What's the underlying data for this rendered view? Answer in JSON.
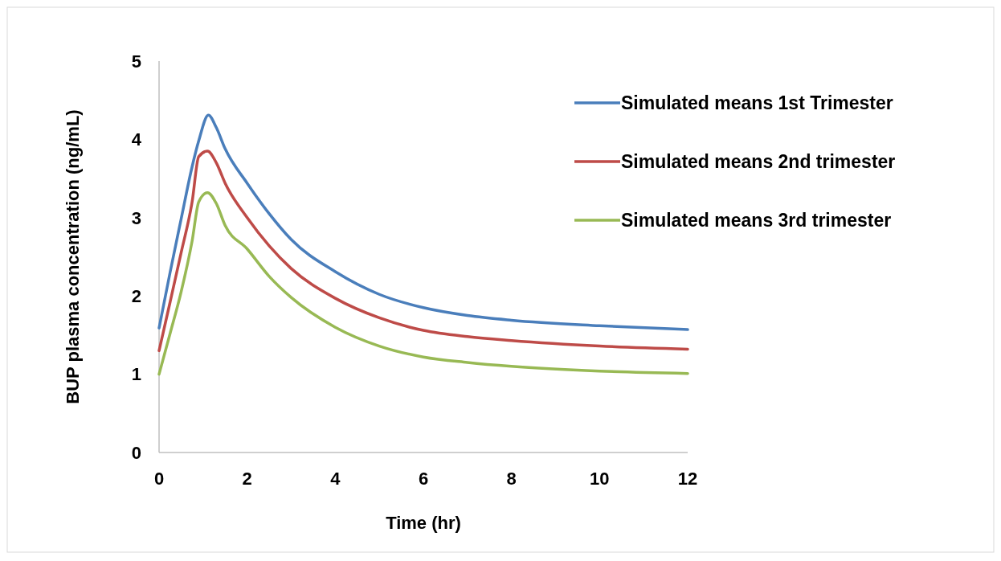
{
  "chart_data": {
    "type": "line",
    "xlabel": "Time (hr)",
    "ylabel": "BUP plasma concentration (ng/mL)",
    "xlim": [
      0,
      12
    ],
    "xticks": [
      0,
      2,
      4,
      6,
      8,
      10,
      12
    ],
    "ylim": [
      0,
      5
    ],
    "yticks": [
      0,
      1,
      2,
      3,
      4,
      5
    ],
    "grid": false,
    "legend": "right",
    "marker": "none",
    "line_style": "solid",
    "series": [
      {
        "name": "Simulated means 1st Trimester",
        "color": "#4a7ebb",
        "x": [
          0,
          0.25,
          0.5,
          0.75,
          0.9,
          1.12,
          1.3,
          1.5,
          2,
          2.5,
          3,
          4,
          5,
          6,
          7,
          8,
          10,
          12
        ],
        "values": [
          1.59,
          2.3,
          2.98,
          3.65,
          3.98,
          4.31,
          4.15,
          3.88,
          3.44,
          3.05,
          2.72,
          2.31,
          2.02,
          1.85,
          1.75,
          1.69,
          1.62,
          1.57
        ]
      },
      {
        "name": "Simulated means 2nd trimester",
        "color": "#be4b48",
        "x": [
          0,
          0.25,
          0.5,
          0.75,
          0.9,
          1.1,
          1.3,
          1.5,
          2,
          2.5,
          3,
          4,
          5,
          6,
          7,
          8,
          10,
          12
        ],
        "values": [
          1.3,
          1.92,
          2.55,
          3.2,
          3.78,
          3.85,
          3.7,
          3.44,
          3.0,
          2.64,
          2.35,
          1.97,
          1.72,
          1.56,
          1.48,
          1.43,
          1.36,
          1.32
        ]
      },
      {
        "name": "Simulated means 3rd trimester",
        "color": "#98b954",
        "x": [
          0,
          0.25,
          0.5,
          0.75,
          0.9,
          1.1,
          1.3,
          1.5,
          2,
          2.5,
          3,
          4,
          5,
          6,
          7,
          8,
          10,
          12
        ],
        "values": [
          1.0,
          1.52,
          2.05,
          2.7,
          3.2,
          3.32,
          3.18,
          2.9,
          2.6,
          2.25,
          1.98,
          1.6,
          1.36,
          1.22,
          1.15,
          1.1,
          1.04,
          1.01
        ]
      }
    ]
  }
}
